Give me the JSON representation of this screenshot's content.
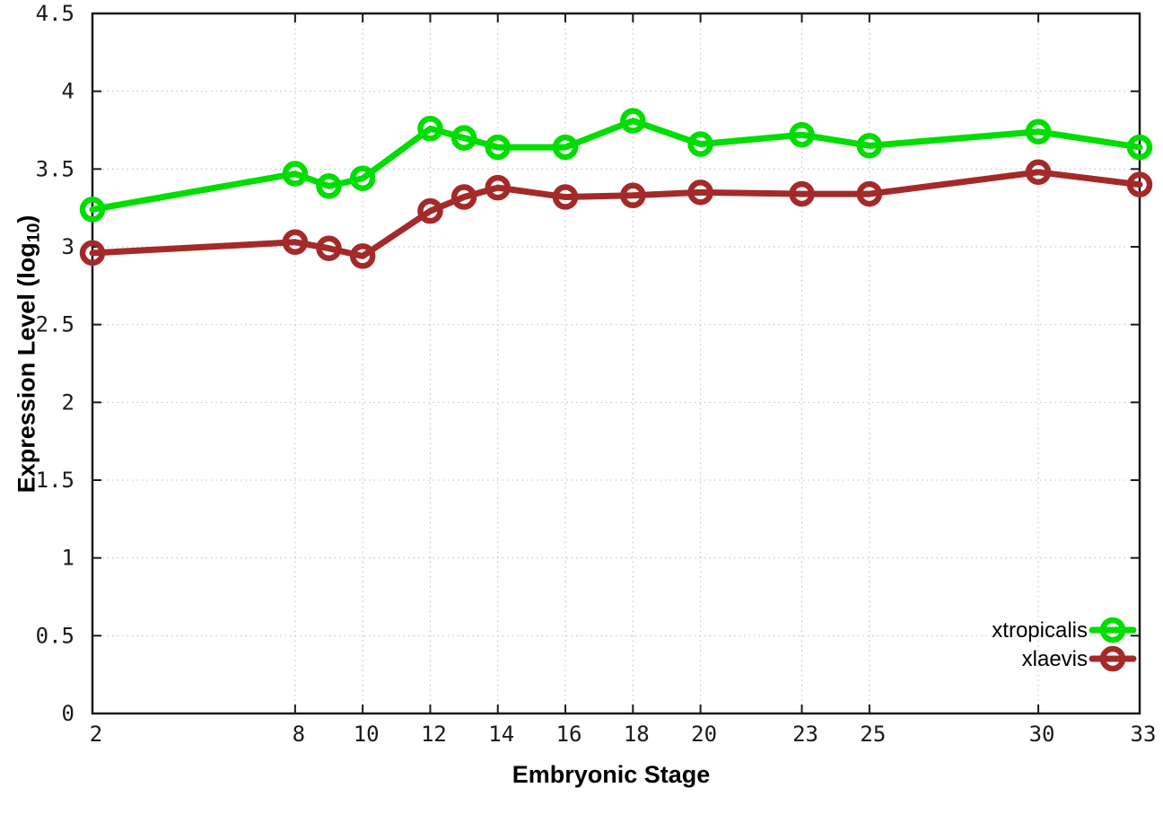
{
  "figure": {
    "background": "#ffffff",
    "border_color": "#1a1a1a",
    "grid_color": "#bdbdbd"
  },
  "axis_titles": {
    "x": "Embryonic Stage",
    "y_pre": "Expression Level (log",
    "y_sub": "10",
    "y_post": ")"
  },
  "chart_data": {
    "type": "line",
    "title": "",
    "xlabel": "Embryonic Stage",
    "ylabel": "Expression Level (log10)",
    "x": [
      2,
      8,
      9,
      10,
      12,
      13,
      14,
      16,
      18,
      20,
      23,
      25,
      30,
      33
    ],
    "series": [
      {
        "name": "xtropicalis",
        "color": "#00dd00",
        "marker": "open-circle",
        "values": [
          3.24,
          3.47,
          3.39,
          3.44,
          3.76,
          3.7,
          3.64,
          3.64,
          3.81,
          3.66,
          3.72,
          3.65,
          3.74,
          3.64
        ]
      },
      {
        "name": "xlaevis",
        "color": "#a42a2a",
        "marker": "open-circle",
        "values": [
          2.96,
          3.03,
          2.99,
          2.94,
          3.23,
          3.32,
          3.38,
          3.32,
          3.33,
          3.35,
          3.34,
          3.34,
          3.48,
          3.4
        ]
      }
    ],
    "x_ticks": [
      "2",
      "8",
      "10",
      "12",
      "14",
      "16",
      "18",
      "20",
      "23",
      "25",
      "30",
      "33"
    ],
    "x_tick_values": [
      2,
      8,
      10,
      12,
      14,
      16,
      18,
      20,
      23,
      25,
      30,
      33
    ],
    "y_ticks": [
      "0",
      "0.5",
      "1",
      "1.5",
      "2",
      "2.5",
      "3",
      "3.5",
      "4",
      "4.5"
    ],
    "y_tick_values": [
      0,
      0.5,
      1,
      1.5,
      2,
      2.5,
      3,
      3.5,
      4,
      4.5
    ],
    "xlim": [
      2,
      33
    ],
    "ylim": [
      0,
      4.5
    ],
    "grid": true,
    "grid_style": "dotted",
    "legend_position": "bottom-right",
    "legend_entries": [
      "xtropicalis",
      "xlaevis"
    ]
  }
}
